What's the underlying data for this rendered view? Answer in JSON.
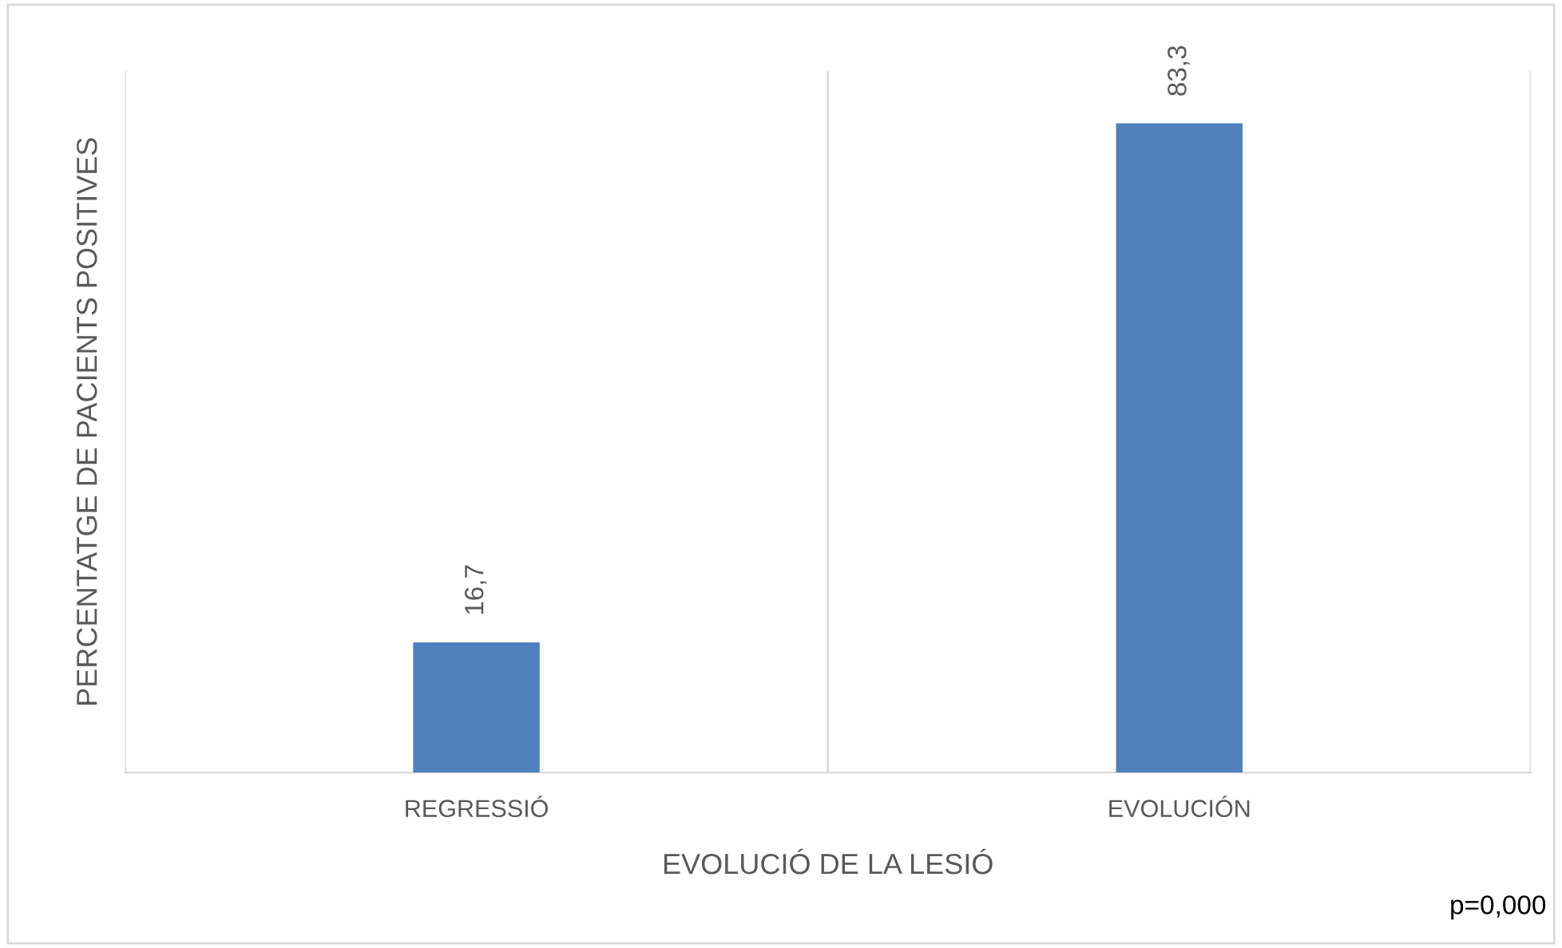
{
  "chart_data": {
    "type": "bar",
    "categories": [
      "REGRESSIÓ",
      "EVOLUCIÓN"
    ],
    "values": [
      16.7,
      83.3
    ],
    "value_labels": [
      "16,7",
      "83,3"
    ],
    "color": "#4f81bd",
    "ylim": [
      0,
      90
    ],
    "xlabel": "EVOLUCIÓ DE LA LESIÓ",
    "ylabel": "PERCENTATGE DE PACIENTS POSITIVES",
    "annotations": [
      "p=0,000"
    ],
    "grid": "x",
    "tick_labels": "x"
  }
}
